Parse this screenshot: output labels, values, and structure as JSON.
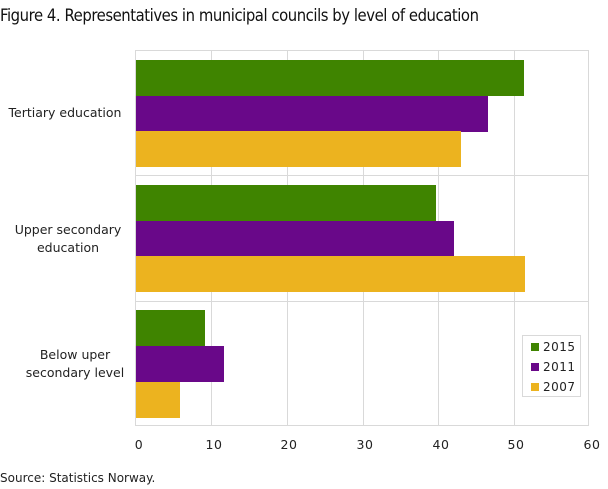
{
  "title": "Figure 4. Representatives in municipal councils by level of education",
  "source": "Source: Statistics Norway.",
  "colors": {
    "2015": "#3f8400",
    "2011": "#690889",
    "2007": "#ecb31f"
  },
  "legend": [
    {
      "label": "2015",
      "color": "#3f8400"
    },
    {
      "label": "2011",
      "color": "#690889"
    },
    {
      "label": "2007",
      "color": "#ecb31f"
    }
  ],
  "categories": [
    {
      "label_line1": "Tertiary education",
      "label_line2": ""
    },
    {
      "label_line1": "Upper secondary",
      "label_line2": "education"
    },
    {
      "label_line1": "Below uper",
      "label_line2": "secondary level"
    }
  ],
  "x_ticks": [
    "0",
    "10",
    "20",
    "30",
    "40",
    "50",
    "60"
  ],
  "chart_data": {
    "type": "bar",
    "orientation": "horizontal",
    "title": "Figure 4. Representatives in municipal councils by level of education",
    "categories": [
      "Tertiary education",
      "Upper secondary education",
      "Below uper secondary level"
    ],
    "series": [
      {
        "name": "2015",
        "color": "#3f8400",
        "values": [
          51.3,
          39.6,
          9.1
        ]
      },
      {
        "name": "2011",
        "color": "#690889",
        "values": [
          46.5,
          42.0,
          11.6
        ]
      },
      {
        "name": "2007",
        "color": "#ecb31f",
        "values": [
          42.9,
          51.4,
          5.8
        ]
      }
    ],
    "xlabel": "",
    "ylabel": "",
    "xlim": [
      0,
      60
    ],
    "x_ticks": [
      0,
      10,
      20,
      30,
      40,
      50,
      60
    ],
    "grid": true,
    "legend_position": "inside bottom right",
    "source": "Source: Statistics Norway."
  }
}
